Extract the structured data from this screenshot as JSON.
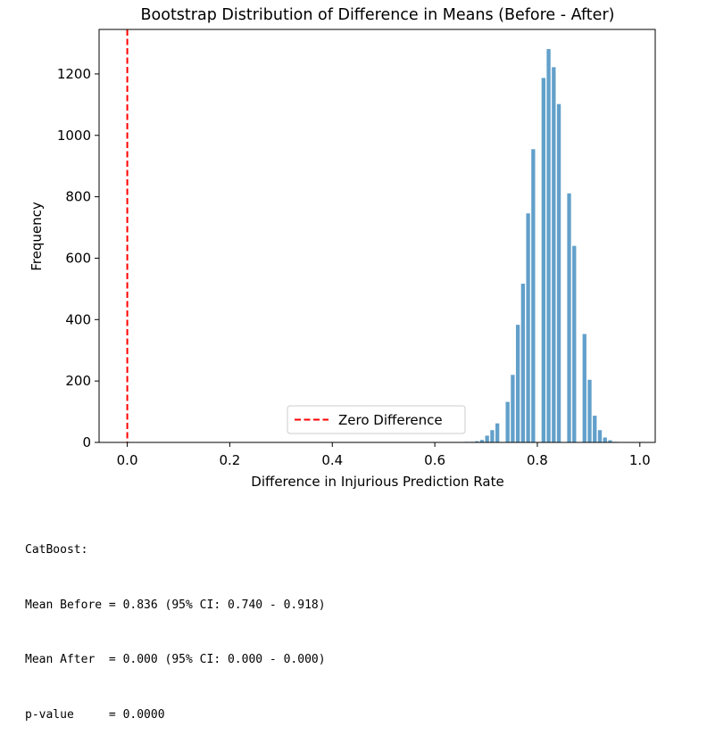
{
  "chart_data": {
    "type": "bar",
    "title": "Bootstrap Distribution of Difference in Means (Before - After)",
    "xlabel": "Difference in Injurious Prediction Rate",
    "ylabel": "Frequency",
    "xlim": [
      -0.055,
      1.03
    ],
    "ylim": [
      0,
      1345
    ],
    "xticks": [
      0.0,
      0.2,
      0.4,
      0.6,
      0.8,
      1.0
    ],
    "xtick_labels": [
      "0.0",
      "0.2",
      "0.4",
      "0.6",
      "0.8",
      "1.0"
    ],
    "yticks": [
      0,
      200,
      400,
      600,
      800,
      1000,
      1200
    ],
    "ytick_labels": [
      "0",
      "200",
      "400",
      "600",
      "800",
      "1000",
      "1200"
    ],
    "bar_color": "#1f77b4",
    "bar_alpha": 0.7,
    "bar_width": 0.0075,
    "x": [
      0.662,
      0.672,
      0.682,
      0.692,
      0.702,
      0.712,
      0.722,
      0.732,
      0.742,
      0.752,
      0.762,
      0.772,
      0.782,
      0.792,
      0.802,
      0.812,
      0.822,
      0.832,
      0.842,
      0.852,
      0.862,
      0.872,
      0.882,
      0.892,
      0.902,
      0.912,
      0.922,
      0.932,
      0.942,
      0.952,
      0.962
    ],
    "values": [
      2,
      2,
      4,
      8,
      22,
      40,
      62,
      0,
      132,
      220,
      383,
      517,
      746,
      955,
      0,
      1187,
      1281,
      1222,
      1102,
      0,
      811,
      640,
      0,
      353,
      204,
      87,
      40,
      16,
      7,
      2,
      0
    ],
    "reference_line": {
      "x": 0.0,
      "color": "#ff0000",
      "style": "dashed",
      "label": "Zero Difference"
    },
    "legend": {
      "placement": "bottom-center",
      "entries": [
        "Zero Difference"
      ]
    },
    "grid": false
  },
  "console": {
    "lines": [
      "CatBoost:",
      "Mean Before = 0.836 (95% CI: 0.740 - 0.918)",
      "Mean After  = 0.000 (95% CI: 0.000 - 0.000)",
      "p-value     = 0.0000"
    ]
  }
}
